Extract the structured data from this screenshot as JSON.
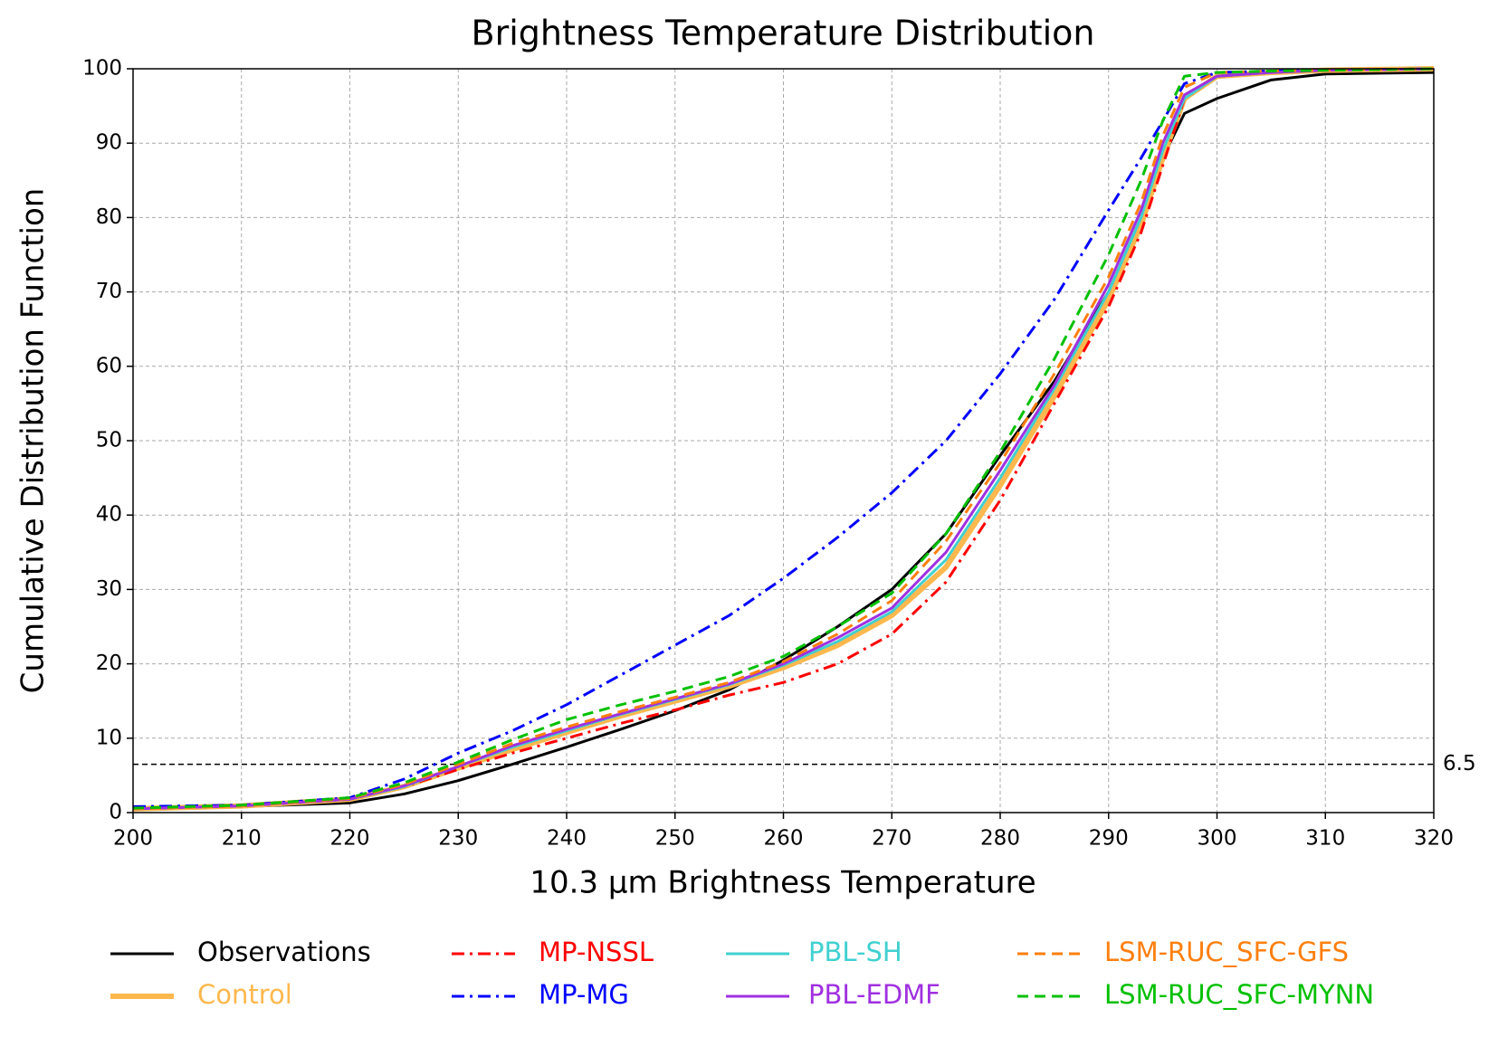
{
  "chart_data": {
    "type": "line",
    "title": "Brightness Temperature Distribution",
    "xlabel": "10.3 μm Brightness Temperature",
    "ylabel": "Cumulative Distribution Function",
    "x": [
      200,
      210,
      220,
      225,
      230,
      235,
      240,
      245,
      250,
      255,
      260,
      265,
      270,
      275,
      280,
      285,
      290,
      293,
      295,
      297,
      300,
      305,
      310,
      320
    ],
    "series": [
      {
        "name": "Observations",
        "color": "#000000",
        "linestyle": "solid",
        "linewidth": 3,
        "values": [
          0.5,
          0.8,
          1.3,
          2.5,
          4.3,
          6.5,
          8.8,
          11.2,
          13.7,
          16.5,
          20.5,
          25,
          30,
          37.5,
          48,
          58,
          70,
          80,
          88,
          94,
          96,
          98.5,
          99.3,
          99.5
        ]
      },
      {
        "name": "Control",
        "color": "#ffb84d",
        "linestyle": "solid",
        "linewidth": 6,
        "values": [
          0.5,
          0.9,
          1.8,
          3.5,
          6,
          8.5,
          10.8,
          13,
          15,
          17,
          19.5,
          22.5,
          26.5,
          33,
          44,
          56,
          69,
          79,
          88,
          96,
          99,
          99.5,
          99.8,
          100
        ]
      },
      {
        "name": "MP-NSSL",
        "color": "#ff0000",
        "linestyle": "dashdot",
        "linewidth": 3,
        "values": [
          0.5,
          0.9,
          1.8,
          3.5,
          5.8,
          8,
          10,
          12,
          13.8,
          15.8,
          17.5,
          20,
          24,
          31,
          42,
          55,
          68,
          78,
          87,
          96,
          99,
          99.5,
          99.8,
          100
        ]
      },
      {
        "name": "MP-MG",
        "color": "#0000ff",
        "linestyle": "dashdot",
        "linewidth": 3,
        "values": [
          0.8,
          1,
          2,
          4.5,
          8,
          11,
          14.5,
          18.5,
          22.5,
          26.5,
          31.5,
          37,
          43,
          50,
          59,
          69,
          81,
          88,
          93,
          98,
          99.5,
          99.7,
          99.8,
          100
        ]
      },
      {
        "name": "PBL-SH",
        "color": "#40d0d0",
        "linestyle": "solid",
        "linewidth": 3,
        "values": [
          0.5,
          0.9,
          1.8,
          3.5,
          6.2,
          8.8,
          11,
          13.2,
          15.2,
          17.2,
          19.8,
          23,
          27,
          34,
          45,
          57,
          70,
          80,
          89,
          96,
          99,
          99.5,
          99.8,
          100
        ]
      },
      {
        "name": "PBL-EDMF",
        "color": "#a030e0",
        "linestyle": "solid",
        "linewidth": 3,
        "values": [
          0.5,
          0.9,
          1.8,
          3.6,
          6.2,
          9,
          11.2,
          13.3,
          15.3,
          17.3,
          20,
          23.5,
          27.5,
          35,
          46,
          57.5,
          71,
          81,
          90,
          96.5,
          99,
          99.5,
          99.8,
          100
        ]
      },
      {
        "name": "LSM-RUC_SFC-GFS",
        "color": "#ff7f0e",
        "linestyle": "dashed",
        "linewidth": 3,
        "values": [
          0.5,
          0.9,
          1.9,
          3.8,
          6.5,
          9.3,
          11.5,
          13.6,
          15.5,
          17.5,
          20.3,
          24,
          28.5,
          36.5,
          47,
          59,
          72,
          82,
          91,
          97.5,
          99.5,
          99.7,
          99.8,
          100
        ]
      },
      {
        "name": "LSM-RUC_SFC-MYNN",
        "color": "#00c000",
        "linestyle": "dashed",
        "linewidth": 3,
        "values": [
          0.6,
          1,
          2,
          4,
          6.8,
          9.8,
          12.5,
          14.5,
          16.3,
          18.3,
          21,
          25,
          29.5,
          37.5,
          48.5,
          61,
          75,
          85,
          93,
          99,
          99.5,
          99.7,
          99.8,
          100
        ]
      }
    ],
    "xlim": [
      200,
      320
    ],
    "ylim": [
      0,
      100
    ],
    "xticks": [
      200,
      210,
      220,
      230,
      240,
      250,
      260,
      270,
      280,
      290,
      300,
      310,
      320
    ],
    "yticks": [
      0,
      10,
      20,
      30,
      40,
      50,
      60,
      70,
      80,
      90,
      100
    ],
    "grid": true,
    "hline": 6.5
  }
}
